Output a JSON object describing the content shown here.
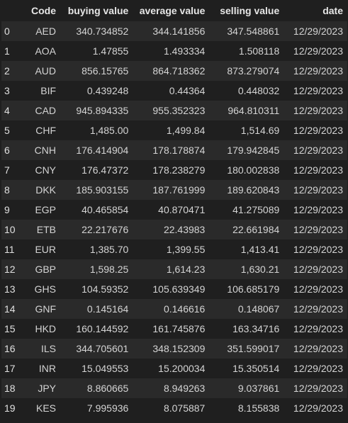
{
  "table": {
    "columns": [
      "",
      "Code",
      "buying value",
      "average value",
      "selling value",
      "date"
    ],
    "rows": [
      {
        "index": "0",
        "code": "AED",
        "buying": "340.734852",
        "average": "344.141856",
        "selling": "347.548861",
        "date": "12/29/2023"
      },
      {
        "index": "1",
        "code": "AOA",
        "buying": "1.47855",
        "average": "1.493334",
        "selling": "1.508118",
        "date": "12/29/2023"
      },
      {
        "index": "2",
        "code": "AUD",
        "buying": "856.15765",
        "average": "864.718362",
        "selling": "873.279074",
        "date": "12/29/2023"
      },
      {
        "index": "3",
        "code": "BIF",
        "buying": "0.439248",
        "average": "0.44364",
        "selling": "0.448032",
        "date": "12/29/2023"
      },
      {
        "index": "4",
        "code": "CAD",
        "buying": "945.894335",
        "average": "955.352323",
        "selling": "964.810311",
        "date": "12/29/2023"
      },
      {
        "index": "5",
        "code": "CHF",
        "buying": "1,485.00",
        "average": "1,499.84",
        "selling": "1,514.69",
        "date": "12/29/2023"
      },
      {
        "index": "6",
        "code": "CNH",
        "buying": "176.414904",
        "average": "178.178874",
        "selling": "179.942845",
        "date": "12/29/2023"
      },
      {
        "index": "7",
        "code": "CNY",
        "buying": "176.47372",
        "average": "178.238279",
        "selling": "180.002838",
        "date": "12/29/2023"
      },
      {
        "index": "8",
        "code": "DKK",
        "buying": "185.903155",
        "average": "187.761999",
        "selling": "189.620843",
        "date": "12/29/2023"
      },
      {
        "index": "9",
        "code": "EGP",
        "buying": "40.465854",
        "average": "40.870471",
        "selling": "41.275089",
        "date": "12/29/2023"
      },
      {
        "index": "10",
        "code": "ETB",
        "buying": "22.217676",
        "average": "22.43983",
        "selling": "22.661984",
        "date": "12/29/2023"
      },
      {
        "index": "11",
        "code": "EUR",
        "buying": "1,385.70",
        "average": "1,399.55",
        "selling": "1,413.41",
        "date": "12/29/2023"
      },
      {
        "index": "12",
        "code": "GBP",
        "buying": "1,598.25",
        "average": "1,614.23",
        "selling": "1,630.21",
        "date": "12/29/2023"
      },
      {
        "index": "13",
        "code": "GHS",
        "buying": "104.59352",
        "average": "105.639349",
        "selling": "106.685179",
        "date": "12/29/2023"
      },
      {
        "index": "14",
        "code": "GNF",
        "buying": "0.145164",
        "average": "0.146616",
        "selling": "0.148067",
        "date": "12/29/2023"
      },
      {
        "index": "15",
        "code": "HKD",
        "buying": "160.144592",
        "average": "161.745876",
        "selling": "163.34716",
        "date": "12/29/2023"
      },
      {
        "index": "16",
        "code": "ILS",
        "buying": "344.705601",
        "average": "348.152309",
        "selling": "351.599017",
        "date": "12/29/2023"
      },
      {
        "index": "17",
        "code": "INR",
        "buying": "15.049553",
        "average": "15.200034",
        "selling": "15.350514",
        "date": "12/29/2023"
      },
      {
        "index": "18",
        "code": "JPY",
        "buying": "8.860665",
        "average": "8.949263",
        "selling": "9.037861",
        "date": "12/29/2023"
      },
      {
        "index": "19",
        "code": "KES",
        "buying": "7.995936",
        "average": "8.075887",
        "selling": "8.155838",
        "date": "12/29/2023"
      }
    ]
  },
  "colors": {
    "background": "#1f1f1f",
    "row_stripe": "#2a2a2a",
    "text": "#d4d4d4"
  }
}
